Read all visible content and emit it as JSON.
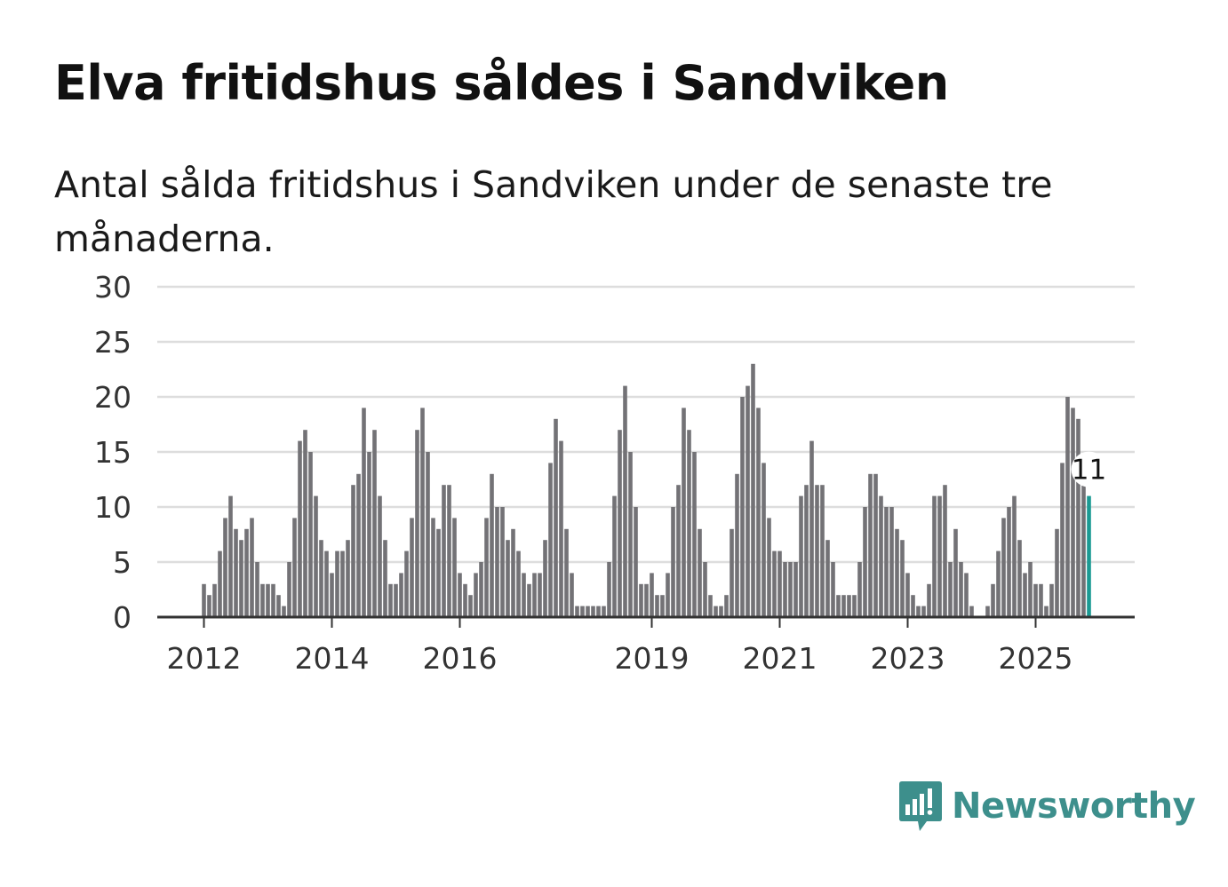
{
  "header": {
    "title": "Elva fritidshus såldes i Sandviken",
    "subtitle": "Antal sålda fritidshus i Sandviken under de senaste tre månaderna."
  },
  "brand": {
    "name": "Newsworthy"
  },
  "colors": {
    "bar": "#737276",
    "highlight": "#1a9a93",
    "grid": "#dddddd",
    "axis": "#333333",
    "logo": "#3d8f8c"
  },
  "chart_data": {
    "type": "bar",
    "title": "Elva fritidshus såldes i Sandviken",
    "xlabel": "",
    "ylabel": "",
    "ylim": [
      0,
      30
    ],
    "yticks": [
      "0",
      "5",
      "10",
      "15",
      "20",
      "25",
      "30"
    ],
    "xtick_labels": [
      "2012",
      "2014",
      "2016",
      "2019",
      "2021",
      "2023",
      "2025"
    ],
    "xtick_index": [
      0,
      24,
      48,
      84,
      108,
      132,
      156
    ],
    "start_period": "2012-01",
    "highlight": {
      "label": "11",
      "value": 11
    },
    "values": [
      3,
      2,
      3,
      6,
      9,
      11,
      8,
      7,
      8,
      9,
      5,
      3,
      3,
      3,
      2,
      1,
      5,
      9,
      16,
      17,
      15,
      11,
      7,
      6,
      4,
      6,
      6,
      7,
      12,
      13,
      19,
      15,
      17,
      11,
      7,
      3,
      3,
      4,
      6,
      9,
      17,
      19,
      15,
      9,
      8,
      12,
      12,
      9,
      4,
      3,
      2,
      4,
      5,
      9,
      13,
      10,
      10,
      7,
      8,
      6,
      4,
      3,
      4,
      4,
      7,
      14,
      18,
      16,
      8,
      4,
      1,
      1,
      1,
      1,
      1,
      1,
      5,
      11,
      17,
      21,
      15,
      10,
      3,
      3,
      4,
      2,
      2,
      4,
      10,
      12,
      19,
      17,
      15,
      8,
      5,
      2,
      1,
      1,
      2,
      8,
      13,
      20,
      21,
      23,
      19,
      14,
      9,
      6,
      6,
      5,
      5,
      5,
      11,
      12,
      16,
      12,
      12,
      7,
      5,
      2,
      2,
      2,
      2,
      5,
      10,
      13,
      13,
      11,
      10,
      10,
      8,
      7,
      4,
      2,
      1,
      1,
      3,
      11,
      11,
      12,
      5,
      8,
      5,
      4,
      1,
      0,
      0,
      1,
      3,
      6,
      9,
      10,
      11,
      7,
      4,
      5,
      3,
      3,
      1,
      3,
      8,
      14,
      20,
      19,
      18,
      12,
      11
    ]
  }
}
